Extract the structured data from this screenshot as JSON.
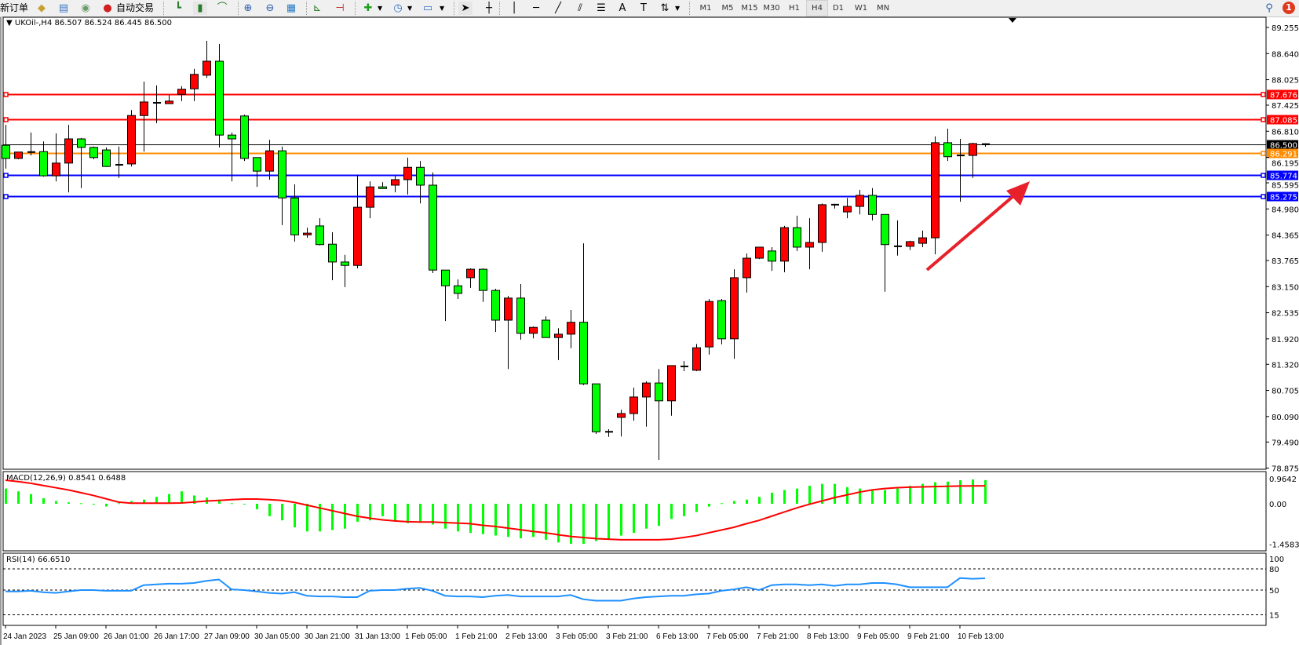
{
  "toolbar": {
    "new_order_label": "新订单",
    "auto_trading_label": "自动交易",
    "icons": [
      "market-watch-icon",
      "navigator-icon",
      "signals-icon",
      "auto-trading-icon",
      "bar-chart-icon",
      "candlestick-icon",
      "line-chart-icon",
      "zoom-in-icon",
      "zoom-out-icon",
      "tile-windows-icon",
      "auto-scroll-icon",
      "chart-shift-icon",
      "indicators-icon",
      "periods-icon",
      "templates-icon",
      "cursor-icon",
      "crosshair-icon",
      "vertical-line-icon",
      "horizontal-line-icon",
      "trendline-icon",
      "equidistant-channel-icon",
      "fibonacci-icon",
      "text-icon",
      "text-label-icon",
      "arrows-icon",
      "search-icon",
      "notifications-icon"
    ],
    "timeframes": [
      "M1",
      "M5",
      "M15",
      "M30",
      "H1",
      "H4",
      "D1",
      "W1",
      "MN"
    ],
    "active_timeframe": "H4",
    "notification_count": "1"
  },
  "chart_header": {
    "symbol": "UKOil-,H4",
    "ohlc_text": "86.507 86.524 86.445 86.500"
  },
  "indicators": {
    "macd_label": "MACD(12,26,9) 0.8541 0.6488",
    "rsi_label": "RSI(14) 66.6510"
  },
  "colors": {
    "up_candle": "#ff0000",
    "down_candle": "#00ff00",
    "resistance_line": "#ff0000",
    "pivot_line": "#ff8c00",
    "support_line": "#0000ff",
    "current_price": "#000000",
    "macd_histogram": "#00ff00",
    "macd_signal": "#ff0000",
    "rsi_line": "#1e90ff",
    "annotation_arrow": "#e8202a"
  },
  "chart_data": [
    {
      "type": "candlestick",
      "title": "UKOil-,H4",
      "ylim": [
        78.875,
        89.255
      ],
      "y_ticks": [
        "89.255",
        "88.640",
        "88.025",
        "87.425",
        "86.810",
        "86.195",
        "85.595",
        "84.980",
        "84.365",
        "83.765",
        "83.150",
        "82.535",
        "81.920",
        "81.320",
        "80.705",
        "80.090",
        "79.490",
        "78.875"
      ],
      "x_tick_labels": [
        "24 Jan 2023",
        "25 Jan 09:00",
        "26 Jan 01:00",
        "26 Jan 17:00",
        "27 Jan 09:00",
        "30 Jan 05:00",
        "30 Jan 21:00",
        "31 Jan 13:00",
        "1 Feb 05:00",
        "1 Feb 21:00",
        "2 Feb 13:00",
        "3 Feb 05:00",
        "3 Feb 21:00",
        "6 Feb 13:00",
        "7 Feb 05:00",
        "7 Feb 21:00",
        "8 Feb 13:00",
        "9 Feb 05:00",
        "9 Feb 21:00",
        "10 Feb 13:00"
      ],
      "ohlc_columns": [
        "open",
        "high",
        "low",
        "close"
      ],
      "candles": [
        [
          86.48,
          86.96,
          85.93,
          86.17
        ],
        [
          86.17,
          86.32,
          86.15,
          86.32
        ],
        [
          86.32,
          86.78,
          86.24,
          86.32
        ],
        [
          86.33,
          86.57,
          85.74,
          85.76
        ],
        [
          85.76,
          86.76,
          85.63,
          86.06
        ],
        [
          86.06,
          86.96,
          85.37,
          86.63
        ],
        [
          86.63,
          86.65,
          85.47,
          86.43
        ],
        [
          86.43,
          86.45,
          86.15,
          86.19
        ],
        [
          86.37,
          86.43,
          85.97,
          85.98
        ],
        [
          86.02,
          86.45,
          85.71,
          86.02
        ],
        [
          86.04,
          87.31,
          85.98,
          87.18
        ],
        [
          87.18,
          87.98,
          86.33,
          87.5
        ],
        [
          87.48,
          87.89,
          87.0,
          87.48
        ],
        [
          87.46,
          87.66,
          87.46,
          87.52
        ],
        [
          87.68,
          87.87,
          87.52,
          87.8
        ],
        [
          87.81,
          88.28,
          87.52,
          88.15
        ],
        [
          88.13,
          88.94,
          88.07,
          88.46
        ],
        [
          88.46,
          88.87,
          86.43,
          86.72
        ],
        [
          86.72,
          86.78,
          85.63,
          86.63
        ],
        [
          87.17,
          87.2,
          86.11,
          86.17
        ],
        [
          86.19,
          86.19,
          85.5,
          85.87
        ],
        [
          85.87,
          86.61,
          85.67,
          86.35
        ],
        [
          86.35,
          86.45,
          84.6,
          85.24
        ],
        [
          85.24,
          85.56,
          84.21,
          84.37
        ],
        [
          84.37,
          84.54,
          84.3,
          84.41
        ],
        [
          84.58,
          84.76,
          84.12,
          84.14
        ],
        [
          84.15,
          84.43,
          83.3,
          83.73
        ],
        [
          83.73,
          83.9,
          83.14,
          83.65
        ],
        [
          83.65,
          85.78,
          83.58,
          85.02
        ],
        [
          85.02,
          85.63,
          84.76,
          85.5
        ],
        [
          85.5,
          85.61,
          85.46,
          85.46
        ],
        [
          85.54,
          85.76,
          85.37,
          85.67
        ],
        [
          85.67,
          86.19,
          85.32,
          85.96
        ],
        [
          85.96,
          86.11,
          85.11,
          85.54
        ],
        [
          85.54,
          85.84,
          83.47,
          83.54
        ],
        [
          83.54,
          83.54,
          82.34,
          83.17
        ],
        [
          83.17,
          83.32,
          82.86,
          82.99
        ],
        [
          83.36,
          83.58,
          83.12,
          83.56
        ],
        [
          83.56,
          83.58,
          82.79,
          83.06
        ],
        [
          83.06,
          83.1,
          82.08,
          82.36
        ],
        [
          82.36,
          82.93,
          81.21,
          82.88
        ],
        [
          82.88,
          83.21,
          81.9,
          82.05
        ],
        [
          82.05,
          82.21,
          81.93,
          82.19
        ],
        [
          82.36,
          82.45,
          81.95,
          81.95
        ],
        [
          81.95,
          82.17,
          81.42,
          82.03
        ],
        [
          82.03,
          82.6,
          81.7,
          82.31
        ],
        [
          82.31,
          84.17,
          80.83,
          80.86
        ],
        [
          80.86,
          80.86,
          79.68,
          79.73
        ],
        [
          79.73,
          79.79,
          79.61,
          79.7
        ],
        [
          80.07,
          80.25,
          79.62,
          80.16
        ],
        [
          80.16,
          80.77,
          79.99,
          80.55
        ],
        [
          80.55,
          80.92,
          79.85,
          80.88
        ],
        [
          80.88,
          81.21,
          79.07,
          80.46
        ],
        [
          80.46,
          81.29,
          80.11,
          81.29
        ],
        [
          81.27,
          81.4,
          81.16,
          81.27
        ],
        [
          81.18,
          81.8,
          81.16,
          81.71
        ],
        [
          81.73,
          82.86,
          81.55,
          82.8
        ],
        [
          82.82,
          82.86,
          81.79,
          81.92
        ],
        [
          81.92,
          83.56,
          81.45,
          83.36
        ],
        [
          83.36,
          83.93,
          83.01,
          83.82
        ],
        [
          83.82,
          84.08,
          83.8,
          84.08
        ],
        [
          83.99,
          84.08,
          83.52,
          83.75
        ],
        [
          83.75,
          84.58,
          83.49,
          84.54
        ],
        [
          84.54,
          84.82,
          83.99,
          84.08
        ],
        [
          84.08,
          84.76,
          83.56,
          84.19
        ],
        [
          84.19,
          85.11,
          83.97,
          85.08
        ],
        [
          85.08,
          85.1,
          84.99,
          85.08
        ],
        [
          84.91,
          85.24,
          84.76,
          85.04
        ],
        [
          85.04,
          85.43,
          84.85,
          85.3
        ],
        [
          85.3,
          85.47,
          84.71,
          84.85
        ],
        [
          84.85,
          84.85,
          83.03,
          84.14
        ],
        [
          84.1,
          84.71,
          83.88,
          84.1
        ],
        [
          84.1,
          84.23,
          84.01,
          84.21
        ],
        [
          84.17,
          84.47,
          84.08,
          84.3
        ],
        [
          84.3,
          86.69,
          83.91,
          86.54
        ],
        [
          86.54,
          86.87,
          86.11,
          86.21
        ],
        [
          86.21,
          86.63,
          85.15,
          86.24
        ],
        [
          86.24,
          86.54,
          85.71,
          86.52
        ],
        [
          86.507,
          86.524,
          86.445,
          86.5
        ]
      ],
      "horizontal_levels": [
        {
          "price": "87.676",
          "kind": "resistance"
        },
        {
          "price": "87.085",
          "kind": "resistance"
        },
        {
          "price": "86.500",
          "kind": "current"
        },
        {
          "price": "86.291",
          "kind": "pivot"
        },
        {
          "price": "85.774",
          "kind": "support"
        },
        {
          "price": "85.275",
          "kind": "support"
        }
      ],
      "annotation": "upward arrow (red) from 9 Feb area pointing up-right"
    },
    {
      "type": "bar+line",
      "title": "MACD(12,26,9) 0.8541 0.6488",
      "ylim": [
        -1.4583,
        0.9642
      ],
      "y_ticks": [
        "0.9642",
        "0.00",
        "-1.4583"
      ],
      "histogram": [
        0.55,
        0.45,
        0.35,
        0.2,
        0.1,
        0.05,
        0.02,
        -0.03,
        -0.1,
        0.02,
        0.1,
        0.15,
        0.25,
        0.35,
        0.45,
        0.3,
        0.22,
        0.15,
        0.02,
        -0.02,
        -0.2,
        -0.45,
        -0.6,
        -0.85,
        -1.0,
        -1.0,
        -0.95,
        -0.9,
        -0.65,
        -0.6,
        -0.45,
        -0.65,
        -0.7,
        -0.65,
        -0.75,
        -0.9,
        -1.0,
        -1.05,
        -1.1,
        -1.15,
        -1.2,
        -1.25,
        -1.2,
        -1.3,
        -1.4,
        -1.45,
        -1.45,
        -1.35,
        -1.3,
        -1.15,
        -1.05,
        -0.9,
        -0.8,
        -0.55,
        -0.45,
        -0.3,
        -0.1,
        0.02,
        0.1,
        0.15,
        0.25,
        0.4,
        0.5,
        0.55,
        0.65,
        0.72,
        0.72,
        0.6,
        0.55,
        0.5,
        0.5,
        0.55,
        0.65,
        0.72,
        0.78,
        0.8,
        0.85,
        0.88,
        0.8541
      ],
      "signal": [
        0.85,
        0.8,
        0.74,
        0.66,
        0.58,
        0.5,
        0.4,
        0.3,
        0.18,
        0.06,
        0.02,
        0.02,
        0.02,
        0.02,
        0.03,
        0.06,
        0.1,
        0.12,
        0.15,
        0.17,
        0.17,
        0.15,
        0.12,
        0.05,
        -0.05,
        -0.15,
        -0.25,
        -0.35,
        -0.45,
        -0.52,
        -0.58,
        -0.62,
        -0.65,
        -0.66,
        -0.66,
        -0.68,
        -0.7,
        -0.72,
        -0.78,
        -0.82,
        -0.88,
        -0.94,
        -1.0,
        -1.05,
        -1.12,
        -1.18,
        -1.22,
        -1.26,
        -1.28,
        -1.3,
        -1.3,
        -1.3,
        -1.3,
        -1.28,
        -1.22,
        -1.15,
        -1.05,
        -0.95,
        -0.85,
        -0.72,
        -0.6,
        -0.45,
        -0.3,
        -0.15,
        -0.02,
        0.1,
        0.22,
        0.32,
        0.42,
        0.5,
        0.55,
        0.58,
        0.6,
        0.61,
        0.62,
        0.63,
        0.64,
        0.645,
        0.6488
      ]
    },
    {
      "type": "line",
      "title": "RSI(14) 66.6510",
      "ylim": [
        0,
        100
      ],
      "y_ticks": [
        "100",
        "80",
        "50",
        "15"
      ],
      "levels": [
        80,
        50,
        15
      ],
      "values": [
        48,
        48,
        49,
        47,
        46,
        48,
        50,
        50,
        49,
        49,
        49,
        57,
        58,
        59,
        59,
        60,
        63,
        65,
        51,
        50,
        48,
        46,
        45,
        47,
        42,
        41,
        41,
        40,
        40,
        49,
        50,
        50,
        52,
        53,
        49,
        42,
        41,
        41,
        40,
        42,
        43,
        41,
        41,
        41,
        41,
        43,
        37,
        35,
        35,
        35,
        38,
        40,
        41,
        42,
        42,
        44,
        45,
        49,
        51,
        54,
        50,
        57,
        58,
        58,
        57,
        58,
        56,
        58,
        58,
        60,
        60,
        58,
        54,
        54,
        54,
        54,
        67,
        66,
        66.651
      ]
    }
  ]
}
